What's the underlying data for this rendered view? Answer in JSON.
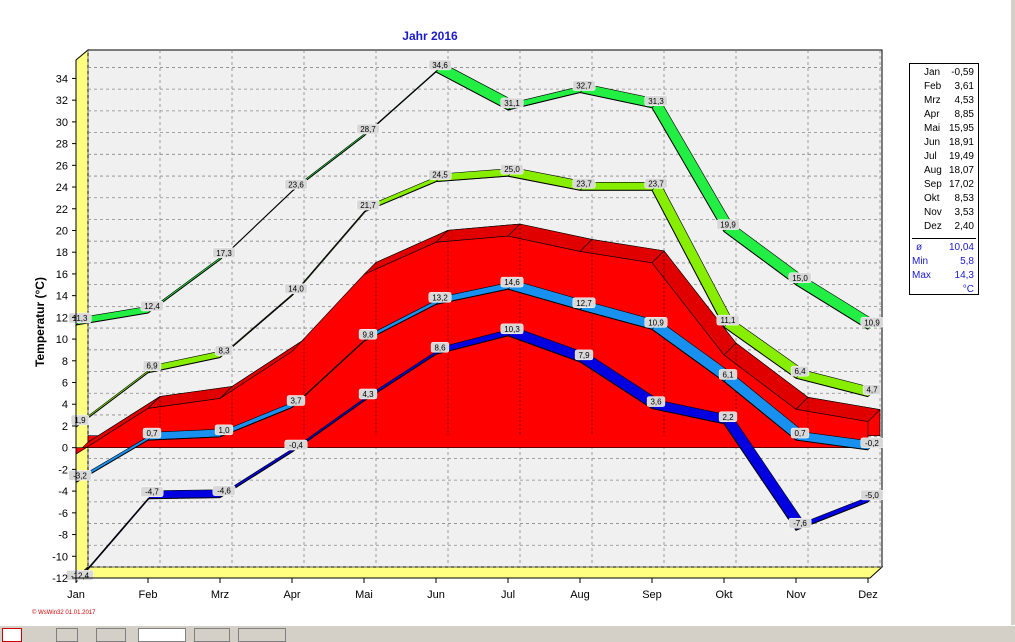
{
  "chart_data": {
    "type": "area",
    "title": "Jahr  2016",
    "ylabel": "Temperatur  (°C)",
    "xlabel": "",
    "ylim": [
      -12,
      36
    ],
    "yticks": [
      -12,
      -10,
      -8,
      -6,
      -4,
      -2,
      0,
      2,
      4,
      6,
      8,
      10,
      12,
      14,
      16,
      18,
      20,
      22,
      24,
      26,
      28,
      30,
      32,
      34
    ],
    "categories": [
      "Jan",
      "Feb",
      "Mrz",
      "Apr",
      "Mai",
      "Jun",
      "Jul",
      "Aug",
      "Sep",
      "Okt",
      "Nov",
      "Dez"
    ],
    "grid": true,
    "legend_position": "right",
    "series": [
      {
        "values": [
          11.3,
          12.4,
          17.3,
          23.6,
          28.7,
          34.6,
          31.1,
          32.7,
          31.3,
          19.9,
          15.0,
          10.9
        ],
        "labels": [
          "11,3",
          "12,4",
          "17,3",
          "23,6",
          "28,7",
          "34,6",
          "31,1",
          "32,7",
          "31,3",
          "19,9",
          "15,0",
          "10,9"
        ],
        "color": "#00ff40",
        "band_color": "#22ee44"
      },
      {
        "values": [
          1.9,
          6.9,
          8.3,
          14.0,
          21.7,
          24.5,
          25.0,
          23.7,
          23.7,
          11.1,
          6.4,
          4.7
        ],
        "labels": [
          "1,9",
          "6,9",
          "8,3",
          "14,0",
          "21,7",
          "24,5",
          "25,0",
          "23,7",
          "23,7",
          "11,1",
          "6,4",
          "4,7"
        ],
        "color": "#80ff00",
        "band_color": "#88ee00"
      },
      {
        "values": [
          -3.2,
          0.7,
          1.0,
          3.7,
          9.8,
          13.2,
          14.6,
          12.7,
          10.9,
          6.1,
          0.7,
          -0.2
        ],
        "labels": [
          "-3,2",
          "0,7",
          "1,0",
          "3,7",
          "9,8",
          "13,2",
          "14,6",
          "12,7",
          "10,9",
          "6,1",
          "0,7",
          "-0,2"
        ],
        "color": "#1080ff",
        "band_color": "#1890f0"
      },
      {
        "values": [
          -12.4,
          -4.7,
          -4.6,
          -0.4,
          4.3,
          8.6,
          10.3,
          7.9,
          3.6,
          2.2,
          -7.6,
          -5.0
        ],
        "labels": [
          "-12,4",
          "-4,7",
          "-4,6",
          "-0,4",
          "4,3",
          "8,6",
          "10,3",
          "7,9",
          "3,6",
          "2,2",
          "-7,6",
          "-5,0"
        ],
        "color": "#0000ff",
        "band_color": "#0000e0"
      }
    ],
    "monthly_mean": [
      -0.59,
      3.61,
      4.53,
      8.85,
      15.95,
      18.91,
      19.49,
      18.07,
      17.02,
      8.53,
      3.53,
      2.4
    ]
  },
  "legend": {
    "months": [
      "Jan",
      "Feb",
      "Mrz",
      "Apr",
      "Mai",
      "Jun",
      "Jul",
      "Aug",
      "Sep",
      "Okt",
      "Nov",
      "Dez"
    ],
    "values": [
      "-0,59",
      "3,61",
      "4,53",
      "8,85",
      "15,95",
      "18,91",
      "19,49",
      "18,07",
      "17,02",
      "8,53",
      "3,53",
      "2,40"
    ],
    "mean_label": "ø",
    "mean_value": "10,04",
    "min_label": "Min",
    "min_value": "5,8",
    "max_label": "Max",
    "max_value": "14,3",
    "unit": "°C"
  },
  "footer": {
    "credit": "© WsWin32  01.01.2017"
  },
  "colors": {
    "plot_bg": "#f0f0f0",
    "wall": "#ffff80",
    "mean_area": "#ff0000",
    "title": "#1a1acc"
  }
}
